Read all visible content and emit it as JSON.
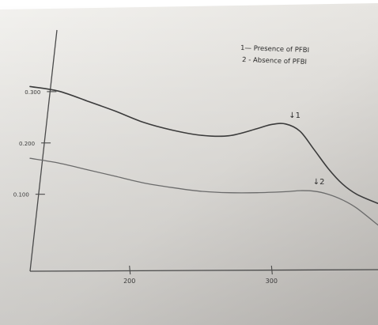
{
  "chart_data": {
    "type": "line",
    "title": "",
    "xlabel": "",
    "ylabel": "",
    "x_ticks": [
      {
        "value": 200,
        "label": "200"
      },
      {
        "value": 300,
        "label": "300"
      }
    ],
    "y_ticks": [
      {
        "value": 0.3,
        "label": "0.300"
      },
      {
        "value": 0.2,
        "label": "0.200"
      },
      {
        "value": 0.1,
        "label": "0.100"
      }
    ],
    "xlim": [
      130,
      375
    ],
    "ylim": [
      -0.05,
      0.42
    ],
    "legend": {
      "placement": "top-right",
      "entries": [
        {
          "text": "1— Presence of PFBI"
        },
        {
          "text": "2 - Absence of PFBI"
        }
      ]
    },
    "series": [
      {
        "id": "1",
        "x": [
          130,
          150,
          170,
          190,
          210,
          230,
          250,
          270,
          290,
          300,
          310,
          320,
          330,
          340,
          350,
          360,
          375
        ],
        "y": [
          0.31,
          0.301,
          0.282,
          0.262,
          0.24,
          0.225,
          0.215,
          0.214,
          0.228,
          0.236,
          0.237,
          0.223,
          0.187,
          0.15,
          0.12,
          0.1,
          0.082
        ]
      },
      {
        "id": "2",
        "x": [
          130,
          150,
          170,
          190,
          210,
          230,
          250,
          270,
          290,
          310,
          320,
          330,
          340,
          350,
          360,
          375
        ],
        "y": [
          0.17,
          0.161,
          0.148,
          0.135,
          0.122,
          0.113,
          0.106,
          0.103,
          0.103,
          0.105,
          0.107,
          0.106,
          0.1,
          0.089,
          0.073,
          0.04
        ]
      }
    ],
    "annotations": [
      {
        "text": "↓1",
        "series": "1",
        "x": 310,
        "y": 0.237
      },
      {
        "text": "↓2",
        "series": "2",
        "x": 327,
        "y": 0.107
      }
    ]
  }
}
